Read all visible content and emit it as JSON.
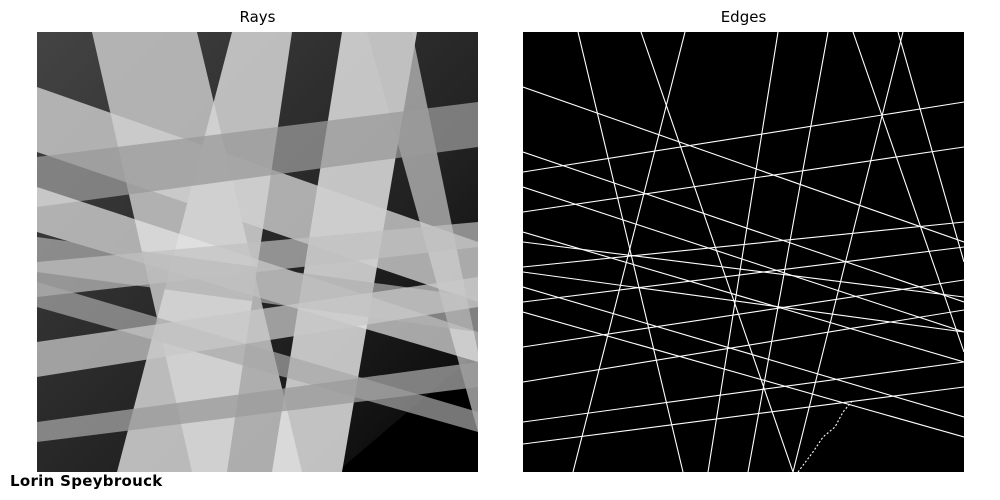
{
  "panels": [
    {
      "title": "Rays"
    },
    {
      "title": "Edges"
    }
  ],
  "watermark": "Lorin Speybrouck"
}
